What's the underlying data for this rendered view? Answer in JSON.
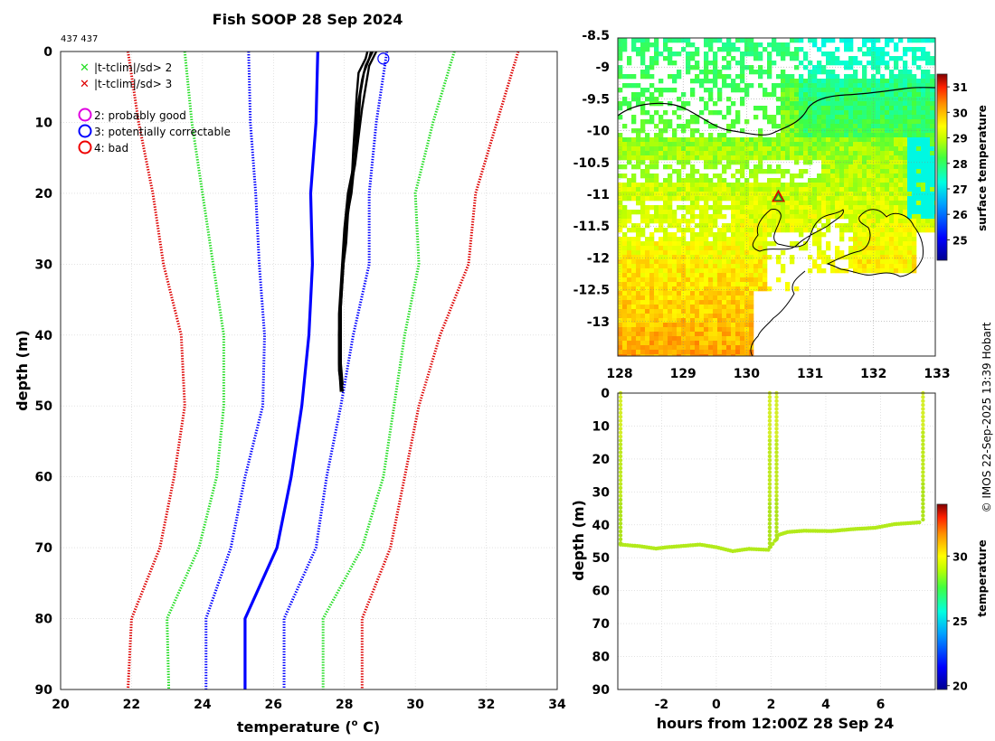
{
  "title": "Fish SOOP 28 Sep 2024",
  "id_text": "437 437",
  "credit": "© IMOS 22-Sep-2025 13:39 Hobart",
  "colors": {
    "bg_panel": "#ffffff",
    "grid": "#d0d0d0",
    "clim_mean": "#0000ff",
    "sd_1": "#0000ff",
    "sd_2": "#22dd22",
    "sd_3": "#dd0000",
    "profile": "#000000",
    "lime": "#b2ea1a"
  },
  "legend": {
    "items": [
      {
        "label": "|t-tclim|/sd> 2",
        "marker": "x",
        "color": "#22dd22"
      },
      {
        "label": "|t-tclim|/sd> 3",
        "marker": "x",
        "color": "#dd0000"
      },
      {
        "label": "2: probably good",
        "marker": "o",
        "color": "#e000e0"
      },
      {
        "label": "3: potentially correctable",
        "marker": "o",
        "color": "#0000ff"
      },
      {
        "label": "4: bad",
        "marker": "o",
        "color": "#ee0000"
      }
    ]
  },
  "chart_data": [
    {
      "id": "profile",
      "type": "line",
      "xlabel": "temperature (",
      "xlabel_sup": "o",
      "xlabel_tail": " C)",
      "ylabel": "depth (m)",
      "xlim": [
        20,
        34
      ],
      "ylim": [
        90,
        0
      ],
      "xticks": [
        20,
        22,
        24,
        26,
        28,
        30,
        32,
        34
      ],
      "yticks": [
        0,
        10,
        20,
        30,
        40,
        50,
        60,
        70,
        80,
        90
      ],
      "depth": [
        0,
        10,
        20,
        30,
        40,
        50,
        60,
        70,
        80,
        90
      ],
      "series": [
        {
          "name": "climatology mean",
          "style": "solid",
          "color": "#0000ff",
          "values": [
            27.25,
            27.2,
            27.05,
            27.1,
            27.0,
            26.8,
            26.5,
            26.1,
            25.2,
            25.2
          ]
        },
        {
          "name": "-1 sd",
          "style": "dotted",
          "color": "#0000ff",
          "values": [
            25.3,
            25.35,
            25.5,
            25.6,
            25.75,
            25.7,
            25.2,
            24.8,
            24.1,
            24.1
          ]
        },
        {
          "name": "+1 sd",
          "style": "dotted",
          "color": "#0000ff",
          "values": [
            29.2,
            28.9,
            28.7,
            28.7,
            28.25,
            27.9,
            27.5,
            27.2,
            26.3,
            26.3
          ]
        },
        {
          "name": "-2 sd",
          "style": "dotted",
          "color": "#22dd22",
          "values": [
            23.5,
            23.7,
            24.0,
            24.3,
            24.6,
            24.6,
            24.4,
            23.9,
            23.0,
            23.05
          ]
        },
        {
          "name": "+2 sd",
          "style": "dotted",
          "color": "#22dd22",
          "values": [
            31.1,
            30.5,
            30.0,
            30.1,
            29.7,
            29.4,
            29.1,
            28.5,
            27.4,
            27.4
          ]
        },
        {
          "name": "-3 sd",
          "style": "dotted",
          "color": "#dd0000",
          "values": [
            21.9,
            22.2,
            22.6,
            22.9,
            23.4,
            23.5,
            23.2,
            22.8,
            22.0,
            21.9
          ]
        },
        {
          "name": "+3 sd",
          "style": "dotted",
          "color": "#dd0000",
          "values": [
            32.9,
            32.3,
            31.7,
            31.5,
            30.7,
            30.1,
            29.7,
            29.3,
            28.5,
            28.5
          ]
        }
      ],
      "casts": [
        {
          "depth": [
            0,
            1,
            3,
            6,
            10,
            15,
            20,
            24,
            28,
            32,
            36,
            40,
            45,
            48
          ],
          "temp": [
            28.75,
            28.7,
            28.55,
            28.45,
            28.4,
            28.3,
            28.2,
            28.05,
            28.0,
            27.95,
            27.9,
            27.9,
            27.9,
            27.95
          ]
        },
        {
          "depth": [
            0,
            2,
            4,
            7,
            10,
            15,
            20,
            25,
            29,
            33,
            37,
            41,
            45,
            47
          ],
          "temp": [
            28.8,
            28.6,
            28.5,
            28.4,
            28.35,
            28.3,
            28.1,
            28.0,
            27.95,
            27.9,
            27.85,
            27.85,
            27.85,
            27.9
          ]
        },
        {
          "depth": [
            0,
            1,
            3,
            6,
            10,
            14,
            19,
            23,
            27,
            31,
            35,
            40,
            44,
            48
          ],
          "temp": [
            28.65,
            28.6,
            28.4,
            28.35,
            28.3,
            28.25,
            28.2,
            28.1,
            28.05,
            27.95,
            27.9,
            27.85,
            27.85,
            27.9
          ]
        },
        {
          "depth": [
            0,
            2,
            5,
            8,
            12,
            16,
            20,
            24,
            28,
            32,
            36,
            40,
            44,
            47
          ],
          "temp": [
            28.9,
            28.7,
            28.6,
            28.5,
            28.4,
            28.3,
            28.15,
            28.05,
            28.0,
            27.95,
            27.9,
            27.85,
            27.9,
            27.95
          ]
        }
      ],
      "flag_circle": {
        "temp": 29.1,
        "depth": 1
      }
    },
    {
      "id": "map",
      "type": "heatmap",
      "xticks": [
        128,
        129,
        130,
        131,
        132,
        133
      ],
      "yticks": [
        -8.5,
        -9,
        -9.5,
        -10,
        -10.5,
        -11,
        -11.5,
        -12,
        -12.5,
        -13
      ],
      "xlim": [
        128,
        133
      ],
      "ylim": [
        -8.5,
        -13.5
      ],
      "colorbar_label": "surface temperature",
      "colorbar_ticks": [
        31,
        30,
        29,
        28,
        27,
        26,
        25
      ],
      "colorbar_range": [
        24.2,
        31.5
      ],
      "marker": {
        "lon": 130.5,
        "lat": -11.05
      }
    },
    {
      "id": "track",
      "type": "scatter",
      "xlabel": "hours from 12:00Z 28 Sep 24",
      "ylabel": "depth (m)",
      "xlim": [
        -3.6,
        8.0
      ],
      "ylim": [
        90,
        0
      ],
      "xticks": [
        -2,
        0,
        2,
        4,
        6
      ],
      "yticks": [
        0,
        10,
        20,
        30,
        40,
        50,
        60,
        70,
        80,
        90
      ],
      "colorbar_label": "temperature",
      "colorbar_ticks": [
        30,
        25,
        20
      ],
      "colorbar_range": [
        19.7,
        34.0
      ],
      "casts": [
        {
          "hours": -3.5,
          "max_depth": 46
        },
        {
          "hours": 1.95,
          "max_depth": 47
        },
        {
          "hours": 2.2,
          "max_depth": 45
        },
        {
          "hours": 7.55,
          "max_depth": 39
        }
      ],
      "tow_depth": [
        [
          -3.5,
          46
        ],
        [
          -2.8,
          46.5
        ],
        [
          -2.2,
          47.2
        ],
        [
          -1.8,
          46.8
        ],
        [
          -1.2,
          46.4
        ],
        [
          -0.6,
          46.0
        ],
        [
          0.0,
          46.8
        ],
        [
          0.6,
          48.0
        ],
        [
          1.2,
          47.3
        ],
        [
          1.9,
          47.6
        ],
        [
          2.3,
          43.0
        ],
        [
          2.6,
          42.2
        ],
        [
          3.2,
          41.8
        ],
        [
          4.2,
          41.9
        ],
        [
          5.0,
          41.3
        ],
        [
          5.8,
          40.9
        ],
        [
          6.5,
          39.8
        ],
        [
          7.5,
          39.2
        ]
      ]
    }
  ]
}
